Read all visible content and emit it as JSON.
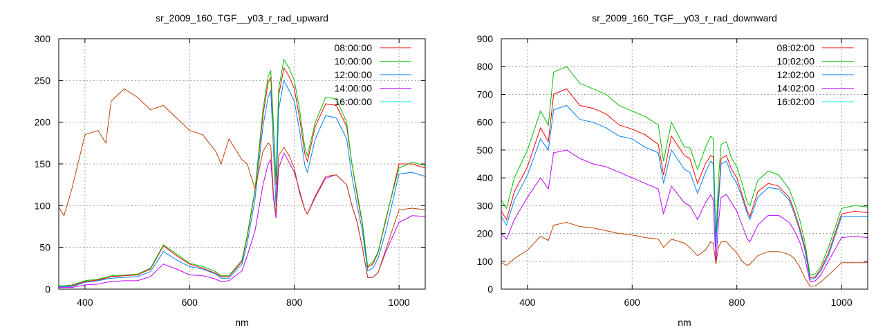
{
  "chart_data": [
    {
      "type": "line",
      "title": "sr_2009_160_TGF__y03_r_rad_upward",
      "xlabel": "nm",
      "ylabel": "",
      "xlim": [
        350,
        1050
      ],
      "ylim": [
        0,
        300
      ],
      "xticks": [
        400,
        600,
        800,
        1000
      ],
      "yticks": [
        0,
        50,
        100,
        150,
        200,
        250,
        300
      ],
      "grid": true,
      "legend_position": "top-right",
      "x": [
        350,
        360,
        375,
        400,
        425,
        440,
        450,
        475,
        500,
        525,
        550,
        575,
        600,
        625,
        650,
        660,
        675,
        700,
        710,
        725,
        740,
        750,
        755,
        760,
        765,
        770,
        780,
        790,
        800,
        810,
        820,
        825,
        840,
        860,
        880,
        900,
        910,
        920,
        930,
        940,
        950,
        960,
        975,
        1000,
        1025,
        1050
      ],
      "series": [
        {
          "name": "08:00:00",
          "color": "#ff0000",
          "values": [
            3,
            3,
            4,
            9,
            11,
            13,
            15,
            16,
            17,
            24,
            52,
            40,
            30,
            25,
            19,
            15,
            15,
            33,
            63,
            118,
            208,
            248,
            254,
            195,
            125,
            232,
            265,
            255,
            240,
            205,
            162,
            153,
            195,
            222,
            220,
            195,
            150,
            112,
            78,
            26,
            30,
            44,
            83,
            150,
            150,
            145
          ]
        },
        {
          "name": "10:00:00",
          "color": "#00c000",
          "values": [
            4,
            4,
            5,
            10,
            12,
            14,
            16,
            17,
            18,
            25,
            53,
            42,
            31,
            27,
            21,
            16,
            16,
            35,
            65,
            120,
            215,
            255,
            262,
            200,
            130,
            240,
            275,
            265,
            250,
            215,
            170,
            160,
            200,
            230,
            228,
            200,
            150,
            115,
            80,
            28,
            32,
            45,
            85,
            145,
            152,
            148
          ]
        },
        {
          "name": "12:00:00",
          "color": "#0080ff",
          "values": [
            3,
            3,
            3,
            8,
            10,
            12,
            13,
            14,
            15,
            21,
            45,
            35,
            27,
            24,
            18,
            13,
            13,
            30,
            55,
            108,
            195,
            230,
            238,
            170,
            100,
            215,
            250,
            238,
            225,
            190,
            148,
            140,
            180,
            208,
            205,
            180,
            135,
            100,
            70,
            22,
            25,
            37,
            70,
            138,
            140,
            135
          ]
        },
        {
          "name": "14:00:00",
          "color": "#c000ff",
          "values": [
            2,
            2,
            2,
            5,
            6,
            8,
            9,
            10,
            10,
            15,
            30,
            24,
            17,
            16,
            12,
            9,
            10,
            22,
            40,
            70,
            125,
            150,
            155,
            110,
            85,
            145,
            163,
            152,
            140,
            118,
            95,
            90,
            110,
            133,
            137,
            125,
            100,
            80,
            50,
            14,
            14,
            20,
            45,
            80,
            88,
            87
          ]
        },
        {
          "name": "16:00:00",
          "color": "#00eeee",
          "values": null
        },
        {
          "name": "",
          "color": "#c04000",
          "values": [
            98,
            88,
            120,
            185,
            190,
            175,
            225,
            240,
            230,
            215,
            220,
            205,
            190,
            185,
            165,
            150,
            180,
            155,
            150,
            120,
            165,
            175,
            172,
            115,
            90,
            160,
            170,
            160,
            145,
            115,
            95,
            90,
            112,
            135,
            137,
            125,
            100,
            80,
            50,
            14,
            14,
            20,
            48,
            95,
            97,
            95
          ]
        }
      ]
    },
    {
      "type": "line",
      "title": "sr_2009_160_TGF__y03_r_rad_downward",
      "xlabel": "nm",
      "ylabel": "",
      "xlim": [
        350,
        1050
      ],
      "ylim": [
        0,
        900
      ],
      "xticks": [
        400,
        600,
        800,
        1000
      ],
      "yticks": [
        0,
        100,
        200,
        300,
        400,
        500,
        600,
        700,
        800,
        900
      ],
      "grid": true,
      "legend_position": "top-right",
      "x": [
        350,
        360,
        375,
        400,
        425,
        440,
        450,
        475,
        500,
        525,
        550,
        575,
        600,
        625,
        650,
        660,
        675,
        700,
        710,
        725,
        740,
        750,
        755,
        760,
        765,
        770,
        780,
        790,
        800,
        810,
        820,
        825,
        840,
        860,
        880,
        900,
        910,
        920,
        930,
        940,
        950,
        960,
        975,
        1000,
        1025,
        1050
      ],
      "series": [
        {
          "name": "08:02:00",
          "color": "#ff0000",
          "values": [
            280,
            250,
            350,
            440,
            580,
            530,
            700,
            720,
            660,
            650,
            630,
            590,
            575,
            555,
            520,
            410,
            550,
            480,
            470,
            380,
            450,
            480,
            475,
            160,
            330,
            470,
            480,
            430,
            400,
            340,
            280,
            260,
            350,
            380,
            370,
            330,
            280,
            220,
            150,
            40,
            45,
            70,
            130,
            270,
            280,
            275
          ]
        },
        {
          "name": "10:02:00",
          "color": "#00c000",
          "values": [
            320,
            290,
            400,
            500,
            640,
            590,
            780,
            800,
            740,
            720,
            700,
            660,
            640,
            620,
            590,
            460,
            600,
            510,
            510,
            430,
            510,
            550,
            540,
            180,
            400,
            520,
            530,
            470,
            440,
            380,
            310,
            300,
            390,
            425,
            410,
            360,
            310,
            250,
            170,
            50,
            55,
            80,
            150,
            290,
            300,
            295
          ]
        },
        {
          "name": "12:02:00",
          "color": "#0080ff",
          "values": [
            260,
            230,
            320,
            410,
            540,
            500,
            645,
            660,
            610,
            600,
            580,
            550,
            540,
            510,
            490,
            380,
            500,
            430,
            420,
            345,
            420,
            460,
            450,
            150,
            310,
            450,
            460,
            410,
            380,
            330,
            270,
            250,
            330,
            365,
            360,
            320,
            270,
            210,
            140,
            35,
            40,
            65,
            120,
            260,
            260,
            260
          ]
        },
        {
          "name": "14:02:00",
          "color": "#c000ff",
          "values": [
            200,
            180,
            250,
            330,
            400,
            360,
            490,
            500,
            470,
            450,
            440,
            420,
            400,
            380,
            360,
            270,
            370,
            310,
            300,
            250,
            310,
            340,
            320,
            90,
            240,
            330,
            340,
            310,
            280,
            230,
            180,
            170,
            230,
            265,
            265,
            240,
            210,
            170,
            110,
            25,
            30,
            50,
            100,
            185,
            190,
            185
          ]
        },
        {
          "name": "16:02:00",
          "color": "#00eeee",
          "values": null
        },
        {
          "name": "",
          "color": "#c04000",
          "values": [
            95,
            85,
            110,
            140,
            190,
            175,
            230,
            240,
            225,
            220,
            210,
            200,
            195,
            185,
            180,
            150,
            180,
            165,
            150,
            120,
            140,
            170,
            165,
            90,
            150,
            170,
            170,
            150,
            130,
            100,
            85,
            90,
            120,
            135,
            135,
            125,
            110,
            80,
            40,
            10,
            12,
            25,
            50,
            95,
            95,
            95
          ]
        }
      ]
    }
  ]
}
